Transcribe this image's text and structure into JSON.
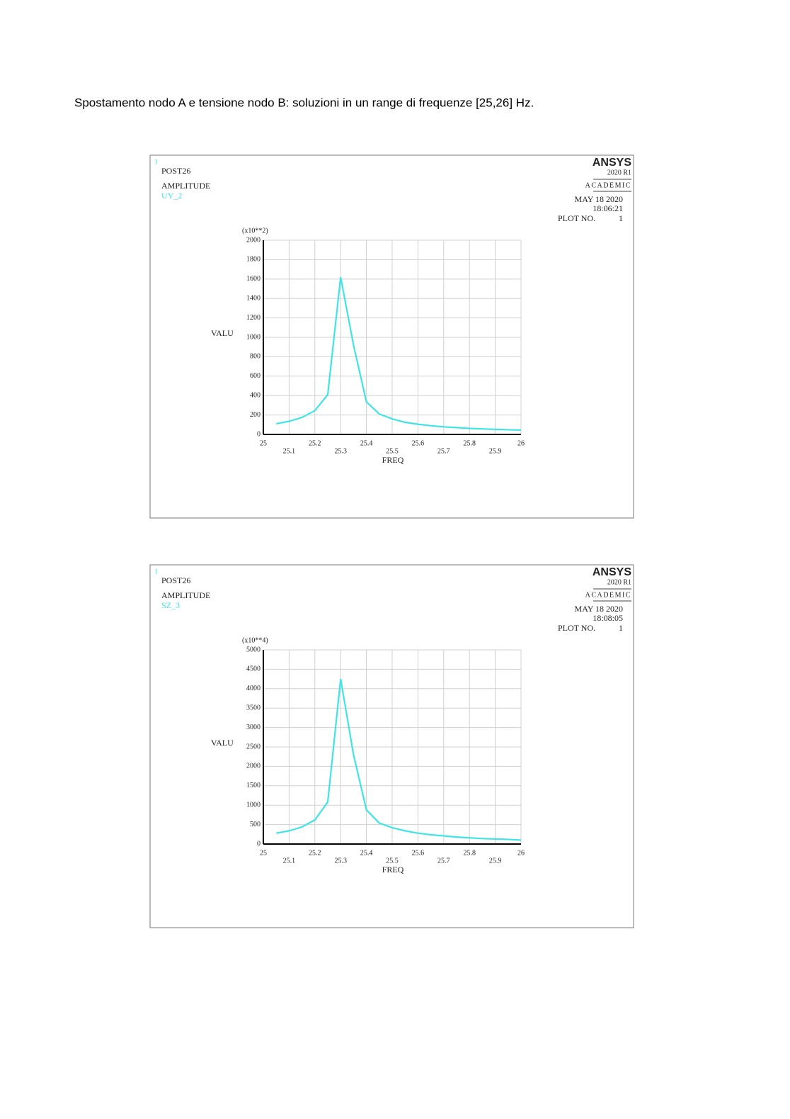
{
  "heading": "Spostamento nodo A e tensione nodo B: soluzioni in un range di frequenze [25,26] Hz.",
  "chart_data": [
    {
      "type": "line",
      "window_number": 1,
      "program": "POST26",
      "title": "AMPLITUDE",
      "logo": "ANSYS",
      "version": "2020 R1",
      "license": "ACADEMIC",
      "date": "MAY 18 2020",
      "time": "18:06:21",
      "plot_label": "PLOT NO.",
      "plot_number": 1,
      "y_multiplier": "(x10**2)",
      "ylabel": "VALU",
      "xlabel": "FREQ",
      "x": [
        25.05,
        25.1,
        25.15,
        25.2,
        25.25,
        25.3,
        25.35,
        25.4,
        25.45,
        25.5,
        25.55,
        25.6,
        25.65,
        25.7,
        25.75,
        25.8,
        25.85,
        25.9,
        25.95,
        26
      ],
      "series": [
        {
          "name": "UY_2",
          "color": "#40e4e4",
          "values": [
            110,
            135,
            175,
            245,
            410,
            1620,
            920,
            335,
            210,
            160,
            125,
            105,
            90,
            78,
            70,
            62,
            57,
            52,
            48,
            45
          ]
        }
      ],
      "xlim": [
        25,
        26
      ],
      "xticks": [
        25,
        25.1,
        25.2,
        25.3,
        25.4,
        25.5,
        25.6,
        25.7,
        25.8,
        25.9,
        26
      ],
      "ylim": [
        0,
        2000
      ],
      "yticks": [
        0,
        200,
        400,
        600,
        800,
        1000,
        1200,
        1400,
        1600,
        1800,
        2000
      ],
      "grid": true
    },
    {
      "type": "line",
      "window_number": 1,
      "program": "POST26",
      "title": "AMPLITUDE",
      "logo": "ANSYS",
      "version": "2020 R1",
      "license": "ACADEMIC",
      "date": "MAY 18 2020",
      "time": "18:08:05",
      "plot_label": "PLOT NO.",
      "plot_number": 1,
      "y_multiplier": "(x10**4)",
      "ylabel": "VALU",
      "xlabel": "FREQ",
      "x": [
        25.05,
        25.1,
        25.15,
        25.2,
        25.25,
        25.3,
        25.35,
        25.4,
        25.45,
        25.5,
        25.55,
        25.6,
        25.65,
        25.7,
        25.75,
        25.8,
        25.85,
        25.9,
        25.95,
        26
      ],
      "series": [
        {
          "name": "SZ_3",
          "color": "#40e4e4",
          "values": [
            280,
            340,
            440,
            620,
            1080,
            4250,
            2300,
            880,
            540,
            420,
            340,
            280,
            240,
            210,
            180,
            160,
            140,
            130,
            120,
            100
          ]
        }
      ],
      "xlim": [
        25,
        26
      ],
      "xticks": [
        25,
        25.1,
        25.2,
        25.3,
        25.4,
        25.5,
        25.6,
        25.7,
        25.8,
        25.9,
        26
      ],
      "ylim": [
        0,
        5000
      ],
      "yticks": [
        0,
        500,
        1000,
        1500,
        2000,
        2500,
        3000,
        3500,
        4000,
        4500,
        5000
      ],
      "grid": true
    }
  ]
}
